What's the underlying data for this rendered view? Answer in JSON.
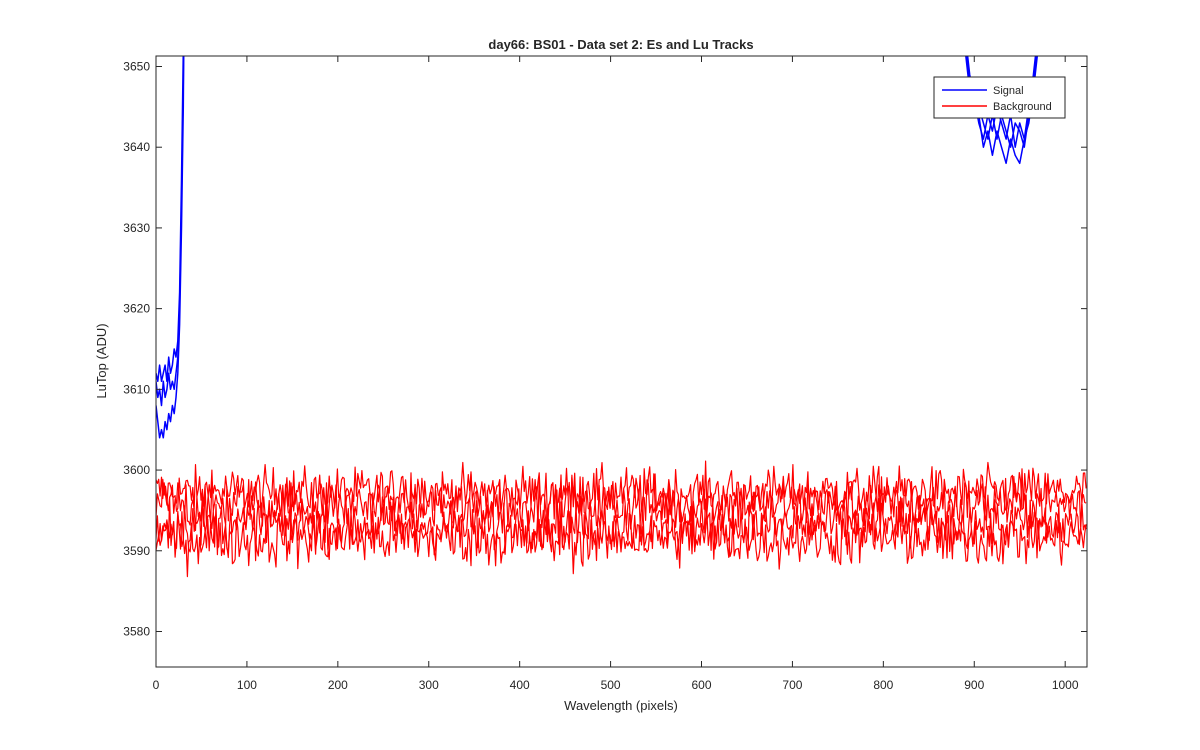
{
  "chart_data": {
    "type": "line",
    "title": "day66: BS01 - Data set 2: Es and Lu Tracks",
    "xlabel": "Wavelength (pixels)",
    "ylabel": "LuTop (ADU)",
    "xlim": [
      0,
      1024
    ],
    "ylim": [
      3575.6,
      3651.3
    ],
    "xticks": [
      0,
      100,
      200,
      300,
      400,
      500,
      600,
      700,
      800,
      900,
      1000
    ],
    "yticks": [
      3580,
      3590,
      3600,
      3610,
      3620,
      3630,
      3640,
      3650
    ],
    "grid": false,
    "legend_position": "top-right",
    "series": [
      {
        "name": "Signal",
        "color": "#0000ff",
        "traces": [
          {
            "points": [
              [
                0,
                3608
              ],
              [
                2,
                3606
              ],
              [
                4,
                3604
              ],
              [
                6,
                3605
              ],
              [
                8,
                3604
              ],
              [
                10,
                3606
              ],
              [
                12,
                3605
              ],
              [
                14,
                3607
              ],
              [
                16,
                3606
              ],
              [
                18,
                3608
              ],
              [
                20,
                3607
              ],
              [
                22,
                3609
              ],
              [
                24,
                3612
              ],
              [
                26,
                3618
              ],
              [
                28,
                3630
              ],
              [
                30,
                3645
              ],
              [
                31,
                3660
              ]
            ]
          },
          {
            "points": [
              [
                0,
                3611
              ],
              [
                2,
                3609
              ],
              [
                4,
                3610
              ],
              [
                6,
                3608
              ],
              [
                8,
                3611
              ],
              [
                10,
                3609
              ],
              [
                12,
                3610
              ],
              [
                14,
                3612
              ],
              [
                16,
                3610
              ],
              [
                18,
                3611
              ],
              [
                20,
                3610
              ],
              [
                22,
                3612
              ],
              [
                24,
                3614
              ],
              [
                26,
                3620
              ],
              [
                28,
                3633
              ],
              [
                30,
                3648
              ],
              [
                31,
                3660
              ]
            ]
          },
          {
            "points": [
              [
                0,
                3612
              ],
              [
                2,
                3611
              ],
              [
                4,
                3613
              ],
              [
                6,
                3611
              ],
              [
                8,
                3612
              ],
              [
                10,
                3613
              ],
              [
                12,
                3611
              ],
              [
                14,
                3614
              ],
              [
                16,
                3612
              ],
              [
                18,
                3613
              ],
              [
                20,
                3615
              ],
              [
                22,
                3614
              ],
              [
                24,
                3616
              ],
              [
                26,
                3622
              ],
              [
                28,
                3636
              ],
              [
                30,
                3652
              ],
              [
                31,
                3660
              ]
            ]
          },
          {
            "points": [
              [
                885,
                3660
              ],
              [
                890,
                3652
              ],
              [
                895,
                3647
              ],
              [
                900,
                3646
              ],
              [
                905,
                3643
              ],
              [
                910,
                3641
              ],
              [
                915,
                3644
              ],
              [
                920,
                3642
              ],
              [
                925,
                3645
              ],
              [
                930,
                3643
              ],
              [
                935,
                3641
              ],
              [
                940,
                3644
              ],
              [
                945,
                3640
              ],
              [
                950,
                3643
              ],
              [
                955,
                3641
              ],
              [
                960,
                3645
              ],
              [
                965,
                3648
              ],
              [
                970,
                3653
              ],
              [
                975,
                3660
              ]
            ]
          },
          {
            "points": [
              [
                885,
                3660
              ],
              [
                890,
                3654
              ],
              [
                895,
                3649
              ],
              [
                900,
                3646
              ],
              [
                905,
                3644
              ],
              [
                910,
                3640
              ],
              [
                915,
                3642
              ],
              [
                920,
                3639
              ],
              [
                925,
                3642
              ],
              [
                930,
                3640
              ],
              [
                935,
                3638
              ],
              [
                940,
                3641
              ],
              [
                945,
                3639
              ],
              [
                950,
                3638
              ],
              [
                955,
                3641
              ],
              [
                960,
                3643
              ],
              [
                965,
                3647
              ],
              [
                970,
                3652
              ],
              [
                975,
                3660
              ]
            ]
          },
          {
            "points": [
              [
                885,
                3660
              ],
              [
                890,
                3653
              ],
              [
                895,
                3648
              ],
              [
                900,
                3647
              ],
              [
                905,
                3645
              ],
              [
                910,
                3643
              ],
              [
                915,
                3641
              ],
              [
                920,
                3644
              ],
              [
                925,
                3641
              ],
              [
                930,
                3644
              ],
              [
                935,
                3642
              ],
              [
                940,
                3640
              ],
              [
                945,
                3643
              ],
              [
                950,
                3642
              ],
              [
                955,
                3640
              ],
              [
                960,
                3644
              ],
              [
                965,
                3649
              ],
              [
                970,
                3654
              ],
              [
                975,
                3660
              ]
            ]
          }
        ]
      },
      {
        "name": "Background",
        "color": "#ff0000",
        "traces": [
          {
            "mean": 3597.3,
            "spread": 1.5
          },
          {
            "mean": 3595.8,
            "spread": 1.7
          },
          {
            "mean": 3593.2,
            "spread": 1.7
          },
          {
            "mean": 3591.6,
            "spread": 1.8
          }
        ]
      }
    ]
  }
}
